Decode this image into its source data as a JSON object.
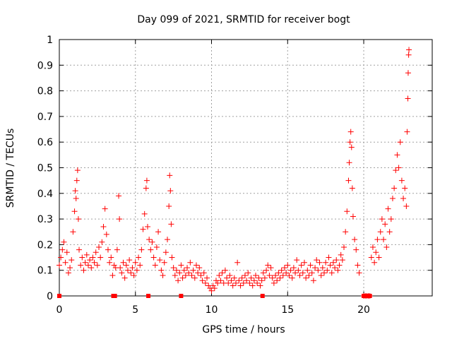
{
  "chart_data": {
    "type": "scatter",
    "title": "Day 099 of 2021, SRMTID for receiver bogt",
    "xlabel": "GPS time / hours",
    "ylabel": "SRMTID / TECUs",
    "xlim": [
      0,
      24.5
    ],
    "ylim": [
      0,
      1
    ],
    "xticks": [
      0,
      5,
      10,
      15,
      20
    ],
    "xtick_labels": [
      "0",
      "5",
      "10",
      "15",
      "20"
    ],
    "yticks": [
      0,
      0.1,
      0.2,
      0.3,
      0.4,
      0.5,
      0.6,
      0.7,
      0.8,
      0.9,
      1
    ],
    "ytick_labels": [
      "0",
      "0.1",
      "0.2",
      "0.3",
      "0.4",
      "0.5",
      "0.6",
      "0.7",
      "0.8",
      "0.9",
      "1"
    ],
    "grid": true,
    "marker": "+",
    "color": "#ff0000",
    "series": [
      {
        "name": "SRMTID",
        "points": [
          [
            0.0,
            0.12
          ],
          [
            0.1,
            0.15
          ],
          [
            0.2,
            0.18
          ],
          [
            0.3,
            0.21
          ],
          [
            0.4,
            0.13
          ],
          [
            0.5,
            0.17
          ],
          [
            0.6,
            0.09
          ],
          [
            0.7,
            0.11
          ],
          [
            0.8,
            0.14
          ],
          [
            0.9,
            0.25
          ],
          [
            1.0,
            0.33
          ],
          [
            1.05,
            0.41
          ],
          [
            1.1,
            0.38
          ],
          [
            1.15,
            0.45
          ],
          [
            1.2,
            0.49
          ],
          [
            1.25,
            0.3
          ],
          [
            1.3,
            0.18
          ],
          [
            1.4,
            0.12
          ],
          [
            1.5,
            0.15
          ],
          [
            1.6,
            0.1
          ],
          [
            1.7,
            0.13
          ],
          [
            1.8,
            0.16
          ],
          [
            1.9,
            0.12
          ],
          [
            2.0,
            0.14
          ],
          [
            2.1,
            0.11
          ],
          [
            2.2,
            0.15
          ],
          [
            2.3,
            0.13
          ],
          [
            2.4,
            0.17
          ],
          [
            2.5,
            0.12
          ],
          [
            2.6,
            0.19
          ],
          [
            2.7,
            0.15
          ],
          [
            2.8,
            0.21
          ],
          [
            2.9,
            0.27
          ],
          [
            3.0,
            0.34
          ],
          [
            3.1,
            0.24
          ],
          [
            3.2,
            0.18
          ],
          [
            3.3,
            0.13
          ],
          [
            3.4,
            0.15
          ],
          [
            3.5,
            0.08
          ],
          [
            3.6,
            0.12
          ],
          [
            3.7,
            0.11
          ],
          [
            3.8,
            0.18
          ],
          [
            3.9,
            0.39
          ],
          [
            3.95,
            0.3
          ],
          [
            4.0,
            0.11
          ],
          [
            4.1,
            0.09
          ],
          [
            4.2,
            0.13
          ],
          [
            4.3,
            0.07
          ],
          [
            4.4,
            0.12
          ],
          [
            4.5,
            0.1
          ],
          [
            4.6,
            0.14
          ],
          [
            4.7,
            0.09
          ],
          [
            4.8,
            0.11
          ],
          [
            4.9,
            0.08
          ],
          [
            5.0,
            0.13
          ],
          [
            5.1,
            0.1
          ],
          [
            5.2,
            0.15
          ],
          [
            5.3,
            0.12
          ],
          [
            5.4,
            0.18
          ],
          [
            5.5,
            0.26
          ],
          [
            5.6,
            0.32
          ],
          [
            5.7,
            0.42
          ],
          [
            5.75,
            0.45
          ],
          [
            5.8,
            0.27
          ],
          [
            5.9,
            0.22
          ],
          [
            6.0,
            0.18
          ],
          [
            6.1,
            0.21
          ],
          [
            6.2,
            0.15
          ],
          [
            6.3,
            0.12
          ],
          [
            6.4,
            0.19
          ],
          [
            6.5,
            0.25
          ],
          [
            6.6,
            0.14
          ],
          [
            6.7,
            0.1
          ],
          [
            6.8,
            0.08
          ],
          [
            6.9,
            0.13
          ],
          [
            7.0,
            0.17
          ],
          [
            7.1,
            0.22
          ],
          [
            7.2,
            0.35
          ],
          [
            7.25,
            0.47
          ],
          [
            7.3,
            0.41
          ],
          [
            7.35,
            0.28
          ],
          [
            7.4,
            0.15
          ],
          [
            7.5,
            0.11
          ],
          [
            7.6,
            0.08
          ],
          [
            7.7,
            0.1
          ],
          [
            7.8,
            0.06
          ],
          [
            7.9,
            0.09
          ],
          [
            8.0,
            0.12
          ],
          [
            8.1,
            0.07
          ],
          [
            8.2,
            0.1
          ],
          [
            8.3,
            0.08
          ],
          [
            8.4,
            0.11
          ],
          [
            8.5,
            0.09
          ],
          [
            8.6,
            0.13
          ],
          [
            8.7,
            0.08
          ],
          [
            8.8,
            0.1
          ],
          [
            8.9,
            0.07
          ],
          [
            9.0,
            0.12
          ],
          [
            9.1,
            0.09
          ],
          [
            9.2,
            0.11
          ],
          [
            9.3,
            0.08
          ],
          [
            9.4,
            0.06
          ],
          [
            9.5,
            0.09
          ],
          [
            9.6,
            0.05
          ],
          [
            9.7,
            0.07
          ],
          [
            9.8,
            0.04
          ],
          [
            9.9,
            0.03
          ],
          [
            10.0,
            0.02
          ],
          [
            10.1,
            0.04
          ],
          [
            10.2,
            0.03
          ],
          [
            10.3,
            0.06
          ],
          [
            10.4,
            0.05
          ],
          [
            10.5,
            0.08
          ],
          [
            10.6,
            0.06
          ],
          [
            10.7,
            0.09
          ],
          [
            10.8,
            0.05
          ],
          [
            10.9,
            0.1
          ],
          [
            11.0,
            0.07
          ],
          [
            11.1,
            0.05
          ],
          [
            11.2,
            0.08
          ],
          [
            11.3,
            0.06
          ],
          [
            11.4,
            0.04
          ],
          [
            11.5,
            0.07
          ],
          [
            11.6,
            0.05
          ],
          [
            11.7,
            0.13
          ],
          [
            11.8,
            0.06
          ],
          [
            11.9,
            0.04
          ],
          [
            12.0,
            0.07
          ],
          [
            12.1,
            0.05
          ],
          [
            12.2,
            0.08
          ],
          [
            12.3,
            0.06
          ],
          [
            12.4,
            0.09
          ],
          [
            12.5,
            0.05
          ],
          [
            12.6,
            0.07
          ],
          [
            12.7,
            0.04
          ],
          [
            12.8,
            0.06
          ],
          [
            12.9,
            0.08
          ],
          [
            13.0,
            0.05
          ],
          [
            13.1,
            0.07
          ],
          [
            13.2,
            0.04
          ],
          [
            13.3,
            0.06
          ],
          [
            13.4,
            0.09
          ],
          [
            13.5,
            0.07
          ],
          [
            13.6,
            0.1
          ],
          [
            13.7,
            0.12
          ],
          [
            13.8,
            0.08
          ],
          [
            13.9,
            0.11
          ],
          [
            14.0,
            0.07
          ],
          [
            14.1,
            0.05
          ],
          [
            14.2,
            0.08
          ],
          [
            14.3,
            0.06
          ],
          [
            14.4,
            0.09
          ],
          [
            14.5,
            0.07
          ],
          [
            14.6,
            0.1
          ],
          [
            14.7,
            0.08
          ],
          [
            14.8,
            0.11
          ],
          [
            14.9,
            0.09
          ],
          [
            15.0,
            0.12
          ],
          [
            15.1,
            0.08
          ],
          [
            15.2,
            0.1
          ],
          [
            15.3,
            0.07
          ],
          [
            15.4,
            0.11
          ],
          [
            15.5,
            0.09
          ],
          [
            15.6,
            0.14
          ],
          [
            15.7,
            0.1
          ],
          [
            15.8,
            0.08
          ],
          [
            15.9,
            0.12
          ],
          [
            16.0,
            0.09
          ],
          [
            16.1,
            0.13
          ],
          [
            16.2,
            0.07
          ],
          [
            16.3,
            0.1
          ],
          [
            16.4,
            0.08
          ],
          [
            16.5,
            0.12
          ],
          [
            16.6,
            0.09
          ],
          [
            16.7,
            0.06
          ],
          [
            16.8,
            0.11
          ],
          [
            16.9,
            0.14
          ],
          [
            17.0,
            0.1
          ],
          [
            17.1,
            0.13
          ],
          [
            17.2,
            0.08
          ],
          [
            17.3,
            0.11
          ],
          [
            17.4,
            0.09
          ],
          [
            17.5,
            0.13
          ],
          [
            17.6,
            0.1
          ],
          [
            17.7,
            0.15
          ],
          [
            17.8,
            0.12
          ],
          [
            17.9,
            0.09
          ],
          [
            18.0,
            0.13
          ],
          [
            18.1,
            0.11
          ],
          [
            18.2,
            0.14
          ],
          [
            18.3,
            0.1
          ],
          [
            18.4,
            0.12
          ],
          [
            18.5,
            0.16
          ],
          [
            18.6,
            0.14
          ],
          [
            18.7,
            0.19
          ],
          [
            18.8,
            0.25
          ],
          [
            18.9,
            0.33
          ],
          [
            19.0,
            0.45
          ],
          [
            19.05,
            0.52
          ],
          [
            19.1,
            0.6
          ],
          [
            19.15,
            0.64
          ],
          [
            19.2,
            0.58
          ],
          [
            19.25,
            0.42
          ],
          [
            19.3,
            0.31
          ],
          [
            19.4,
            0.22
          ],
          [
            19.5,
            0.18
          ],
          [
            19.6,
            0.12
          ],
          [
            19.7,
            0.09
          ],
          [
            20.0,
            0.0
          ],
          [
            20.1,
            0.0
          ],
          [
            20.2,
            0.0
          ],
          [
            20.3,
            0.0
          ],
          [
            20.4,
            0.0
          ],
          [
            20.5,
            0.15
          ],
          [
            20.6,
            0.19
          ],
          [
            20.7,
            0.13
          ],
          [
            20.8,
            0.17
          ],
          [
            20.9,
            0.22
          ],
          [
            21.0,
            0.15
          ],
          [
            21.1,
            0.25
          ],
          [
            21.2,
            0.3
          ],
          [
            21.3,
            0.22
          ],
          [
            21.4,
            0.28
          ],
          [
            21.5,
            0.19
          ],
          [
            21.6,
            0.34
          ],
          [
            21.7,
            0.25
          ],
          [
            21.8,
            0.3
          ],
          [
            21.9,
            0.38
          ],
          [
            22.0,
            0.42
          ],
          [
            22.1,
            0.49
          ],
          [
            22.2,
            0.55
          ],
          [
            22.3,
            0.5
          ],
          [
            22.4,
            0.6
          ],
          [
            22.5,
            0.45
          ],
          [
            22.6,
            0.38
          ],
          [
            22.7,
            0.42
          ],
          [
            22.8,
            0.35
          ],
          [
            22.85,
            0.64
          ],
          [
            22.9,
            0.77
          ],
          [
            22.92,
            0.87
          ],
          [
            22.95,
            0.94
          ],
          [
            22.97,
            0.96
          ]
        ]
      }
    ],
    "zero_markers_x": [
      0.0,
      3.55,
      3.65,
      5.85,
      8.0,
      13.35,
      20.0,
      20.1,
      20.2,
      20.3,
      20.4
    ]
  }
}
